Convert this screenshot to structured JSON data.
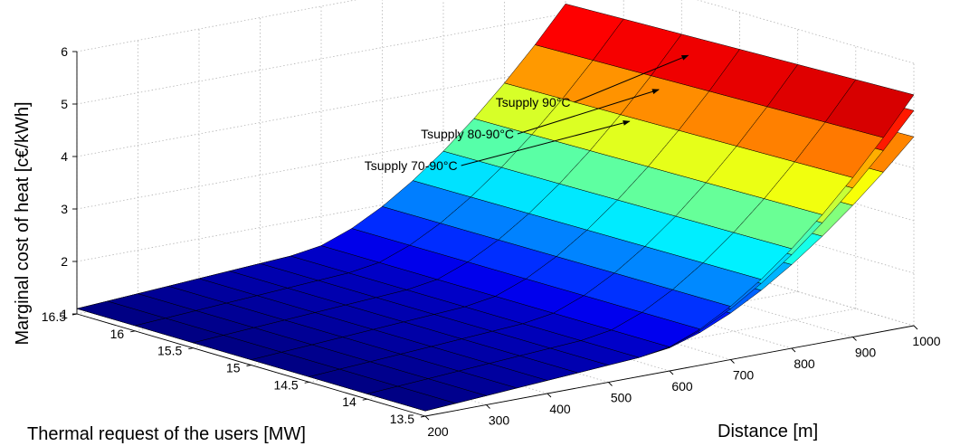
{
  "chart_data": {
    "type": "surface",
    "xlabel": "Distance [m]",
    "ylabel": "Thermal request of the users [MW]",
    "zlabel": "Marginal cost of heat [c€/kWh]",
    "x_ticks": [
      200,
      300,
      400,
      500,
      600,
      700,
      800,
      900,
      1000
    ],
    "y_ticks": [
      13.5,
      14,
      14.5,
      15,
      15.5,
      16,
      16.5
    ],
    "z_ticks": [
      1,
      2,
      3,
      4,
      5,
      6
    ],
    "xlim": [
      200,
      1000
    ],
    "ylim": [
      13.5,
      16.5
    ],
    "zlim": [
      1,
      6
    ],
    "grid": true,
    "colormap": "jet",
    "series": [
      {
        "name": "Tsupply 90°C",
        "max_value": 5.4
      },
      {
        "name": "Tsupply 80-90°C",
        "max_value": 5.1
      },
      {
        "name": "Tsupply 70-90°C",
        "max_value": 4.6
      }
    ],
    "annotations": [
      {
        "text": "Tsupply 90°C",
        "points_to_value": 5.2
      },
      {
        "text": "Tsupply 80-90°C",
        "points_to_value": 4.65
      },
      {
        "text": "Tsupply 70-90°C",
        "points_to_value": 4.15
      }
    ],
    "summary_values": {
      "low_distance_cost": 1.1,
      "mid_distance_cost": 2.0,
      "high_distance_cost": 5.4
    }
  }
}
